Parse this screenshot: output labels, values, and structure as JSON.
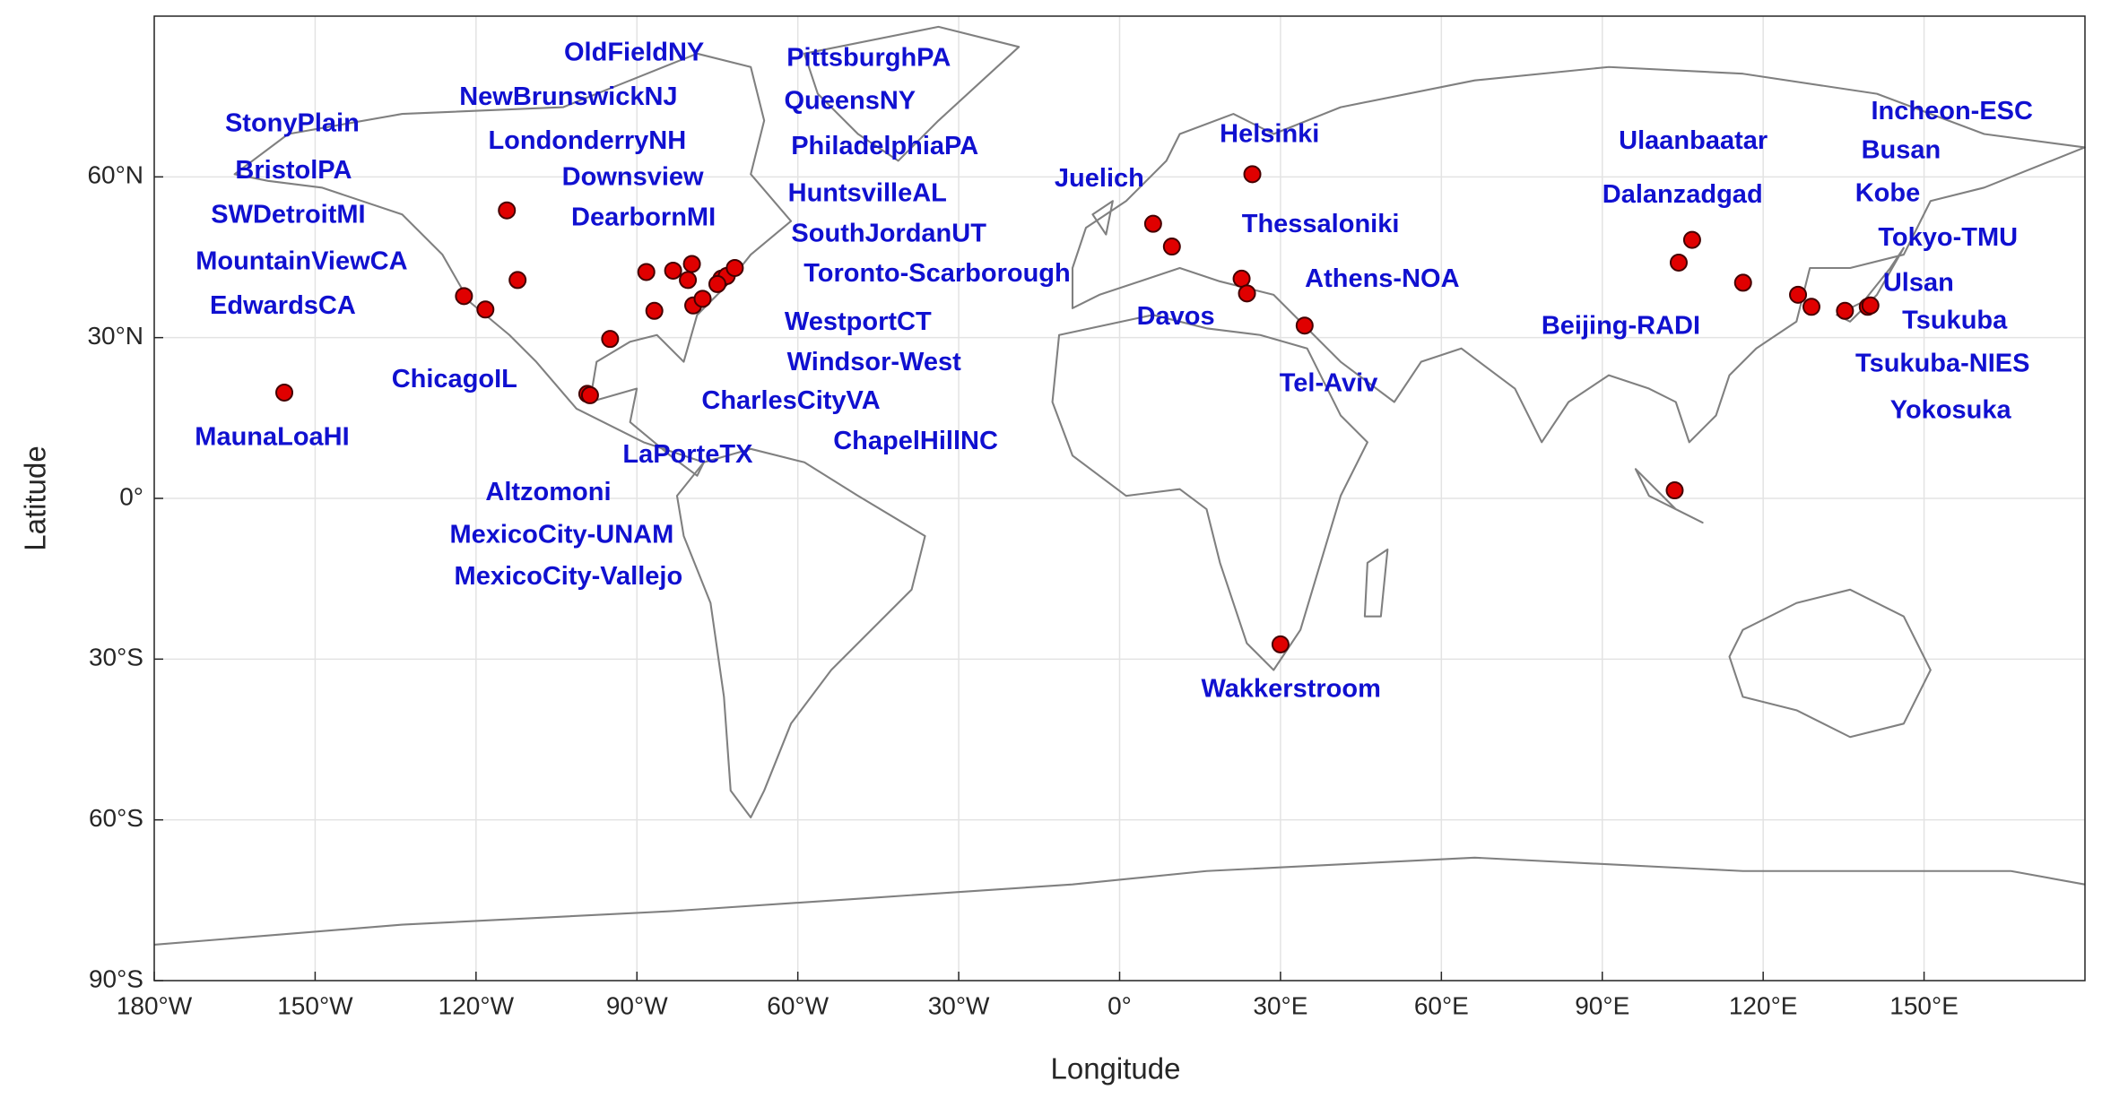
{
  "chart_data": {
    "type": "scatter",
    "x_label": "Longitude",
    "y_label": "Latitude",
    "xlim": [
      -180,
      180
    ],
    "ylim": [
      -90,
      90
    ],
    "xticks": [
      {
        "value": -180,
        "label": "180°W"
      },
      {
        "value": -150,
        "label": "150°W"
      },
      {
        "value": -120,
        "label": "120°W"
      },
      {
        "value": -90,
        "label": "90°W"
      },
      {
        "value": -60,
        "label": "60°W"
      },
      {
        "value": -30,
        "label": "30°W"
      },
      {
        "value": 0,
        "label": "0°"
      },
      {
        "value": 30,
        "label": "30°E"
      },
      {
        "value": 60,
        "label": "60°E"
      },
      {
        "value": 90,
        "label": "90°E"
      },
      {
        "value": 120,
        "label": "120°E"
      },
      {
        "value": 150,
        "label": "150°E"
      }
    ],
    "yticks": [
      {
        "value": -90,
        "label": "90°S"
      },
      {
        "value": -60,
        "label": "60°S"
      },
      {
        "value": -30,
        "label": "30°S"
      },
      {
        "value": 0,
        "label": "0°"
      },
      {
        "value": 30,
        "label": "30°N"
      },
      {
        "value": 60,
        "label": "60°N"
      }
    ],
    "grid": true,
    "color": "#e00000",
    "x": [
      -155.75,
      -122.25,
      -118.25,
      -114.25,
      -112.25,
      -95,
      -99.25,
      -98.75,
      -88.25,
      -86.75,
      -83.25,
      -79.75,
      -80.5,
      -79.5,
      -77.75,
      -74.25,
      -73.25,
      -71.75,
      -75,
      6.25,
      9.75,
      24.75,
      22.75,
      23.75,
      34.5,
      30,
      106.75,
      104.25,
      116.25,
      103.5,
      126.5,
      129,
      135.25,
      139.5,
      140
    ],
    "values": [
      19.75,
      37.75,
      35.25,
      53.75,
      40.75,
      29.75,
      19.5,
      19.25,
      42.25,
      35,
      42.5,
      43.75,
      40.75,
      36,
      37.25,
      41,
      41.5,
      43,
      40,
      51.25,
      47,
      60.5,
      41,
      38.25,
      32.25,
      -27.25,
      48.25,
      44,
      40.25,
      1.5,
      38,
      35.75,
      35,
      35.75,
      36
    ],
    "station_labels": [
      "OldFieldNY",
      "PittsburghPA",
      "NewBrunswickNJ",
      "QueensNY",
      "StonyPlain",
      "LondonderryNH",
      "PhiladelphiaPA",
      "BristolPA",
      "Downsview",
      "HuntsvilleAL",
      "SWDetroitMI",
      "DearbornMI",
      "SouthJordanUT",
      "MountainViewCA",
      "Toronto-Scarborough",
      "EdwardsCA",
      "WestportCT",
      "Windsor-West",
      "ChicagoIL",
      "CharlesCityVA",
      "MaunaLoaHI",
      "ChapelHillNC",
      "LaPorteTX",
      "Altzomoni",
      "MexicoCity-UNAM",
      "MexicoCity-Vallejo",
      "Helsinki",
      "Juelich",
      "Thessaloniki",
      "Athens-NOA",
      "Davos",
      "Tel-Aviv",
      "Wakkerstroom",
      "Ulaanbaatar",
      "Dalanzadgad",
      "Beijing-RADI",
      "Incheon-ESC",
      "Busan",
      "Kobe",
      "Tokyo-TMU",
      "Ulsan",
      "Tsukuba",
      "Tsukuba-NIES",
      "Yokosuka"
    ]
  }
}
